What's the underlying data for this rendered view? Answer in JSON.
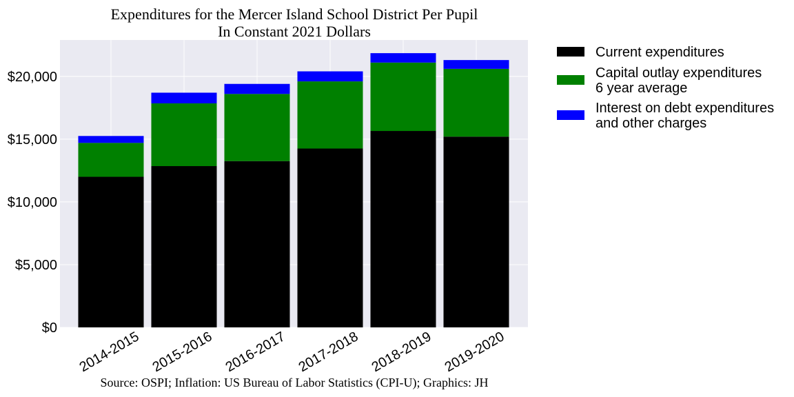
{
  "chart_data": {
    "type": "bar",
    "stacked": true,
    "title": "Expenditures for the Mercer Island School District Per Pupil",
    "subtitle": "In Constant 2021 Dollars",
    "source": "Source: OSPI; Inflation: US Bureau of Labor Statistics (CPI-U); Graphics: JH",
    "categories": [
      "2014-2015",
      "2015-2016",
      "2016-2017",
      "2017-2018",
      "2018-2019",
      "2019-2020"
    ],
    "series": [
      {
        "name": "Current expenditures",
        "color": "#000000",
        "values": [
          12000,
          12850,
          13250,
          14250,
          15650,
          15200
        ]
      },
      {
        "name": "Capital outlay expenditures\n6 year average",
        "color": "#008000",
        "values": [
          2700,
          5000,
          5350,
          5350,
          5450,
          5400
        ]
      },
      {
        "name": "Interest on debt expenditures\nand other charges",
        "color": "#0000ff",
        "values": [
          550,
          850,
          800,
          800,
          750,
          700
        ]
      }
    ],
    "ylim": [
      0,
      22900
    ],
    "yticks": [
      0,
      5000,
      10000,
      15000,
      20000
    ],
    "ytick_labels": [
      "$0",
      "$5,000",
      "$10,000",
      "$15,000",
      "$20,000"
    ],
    "grid": true,
    "legend_position": "outside-right"
  }
}
